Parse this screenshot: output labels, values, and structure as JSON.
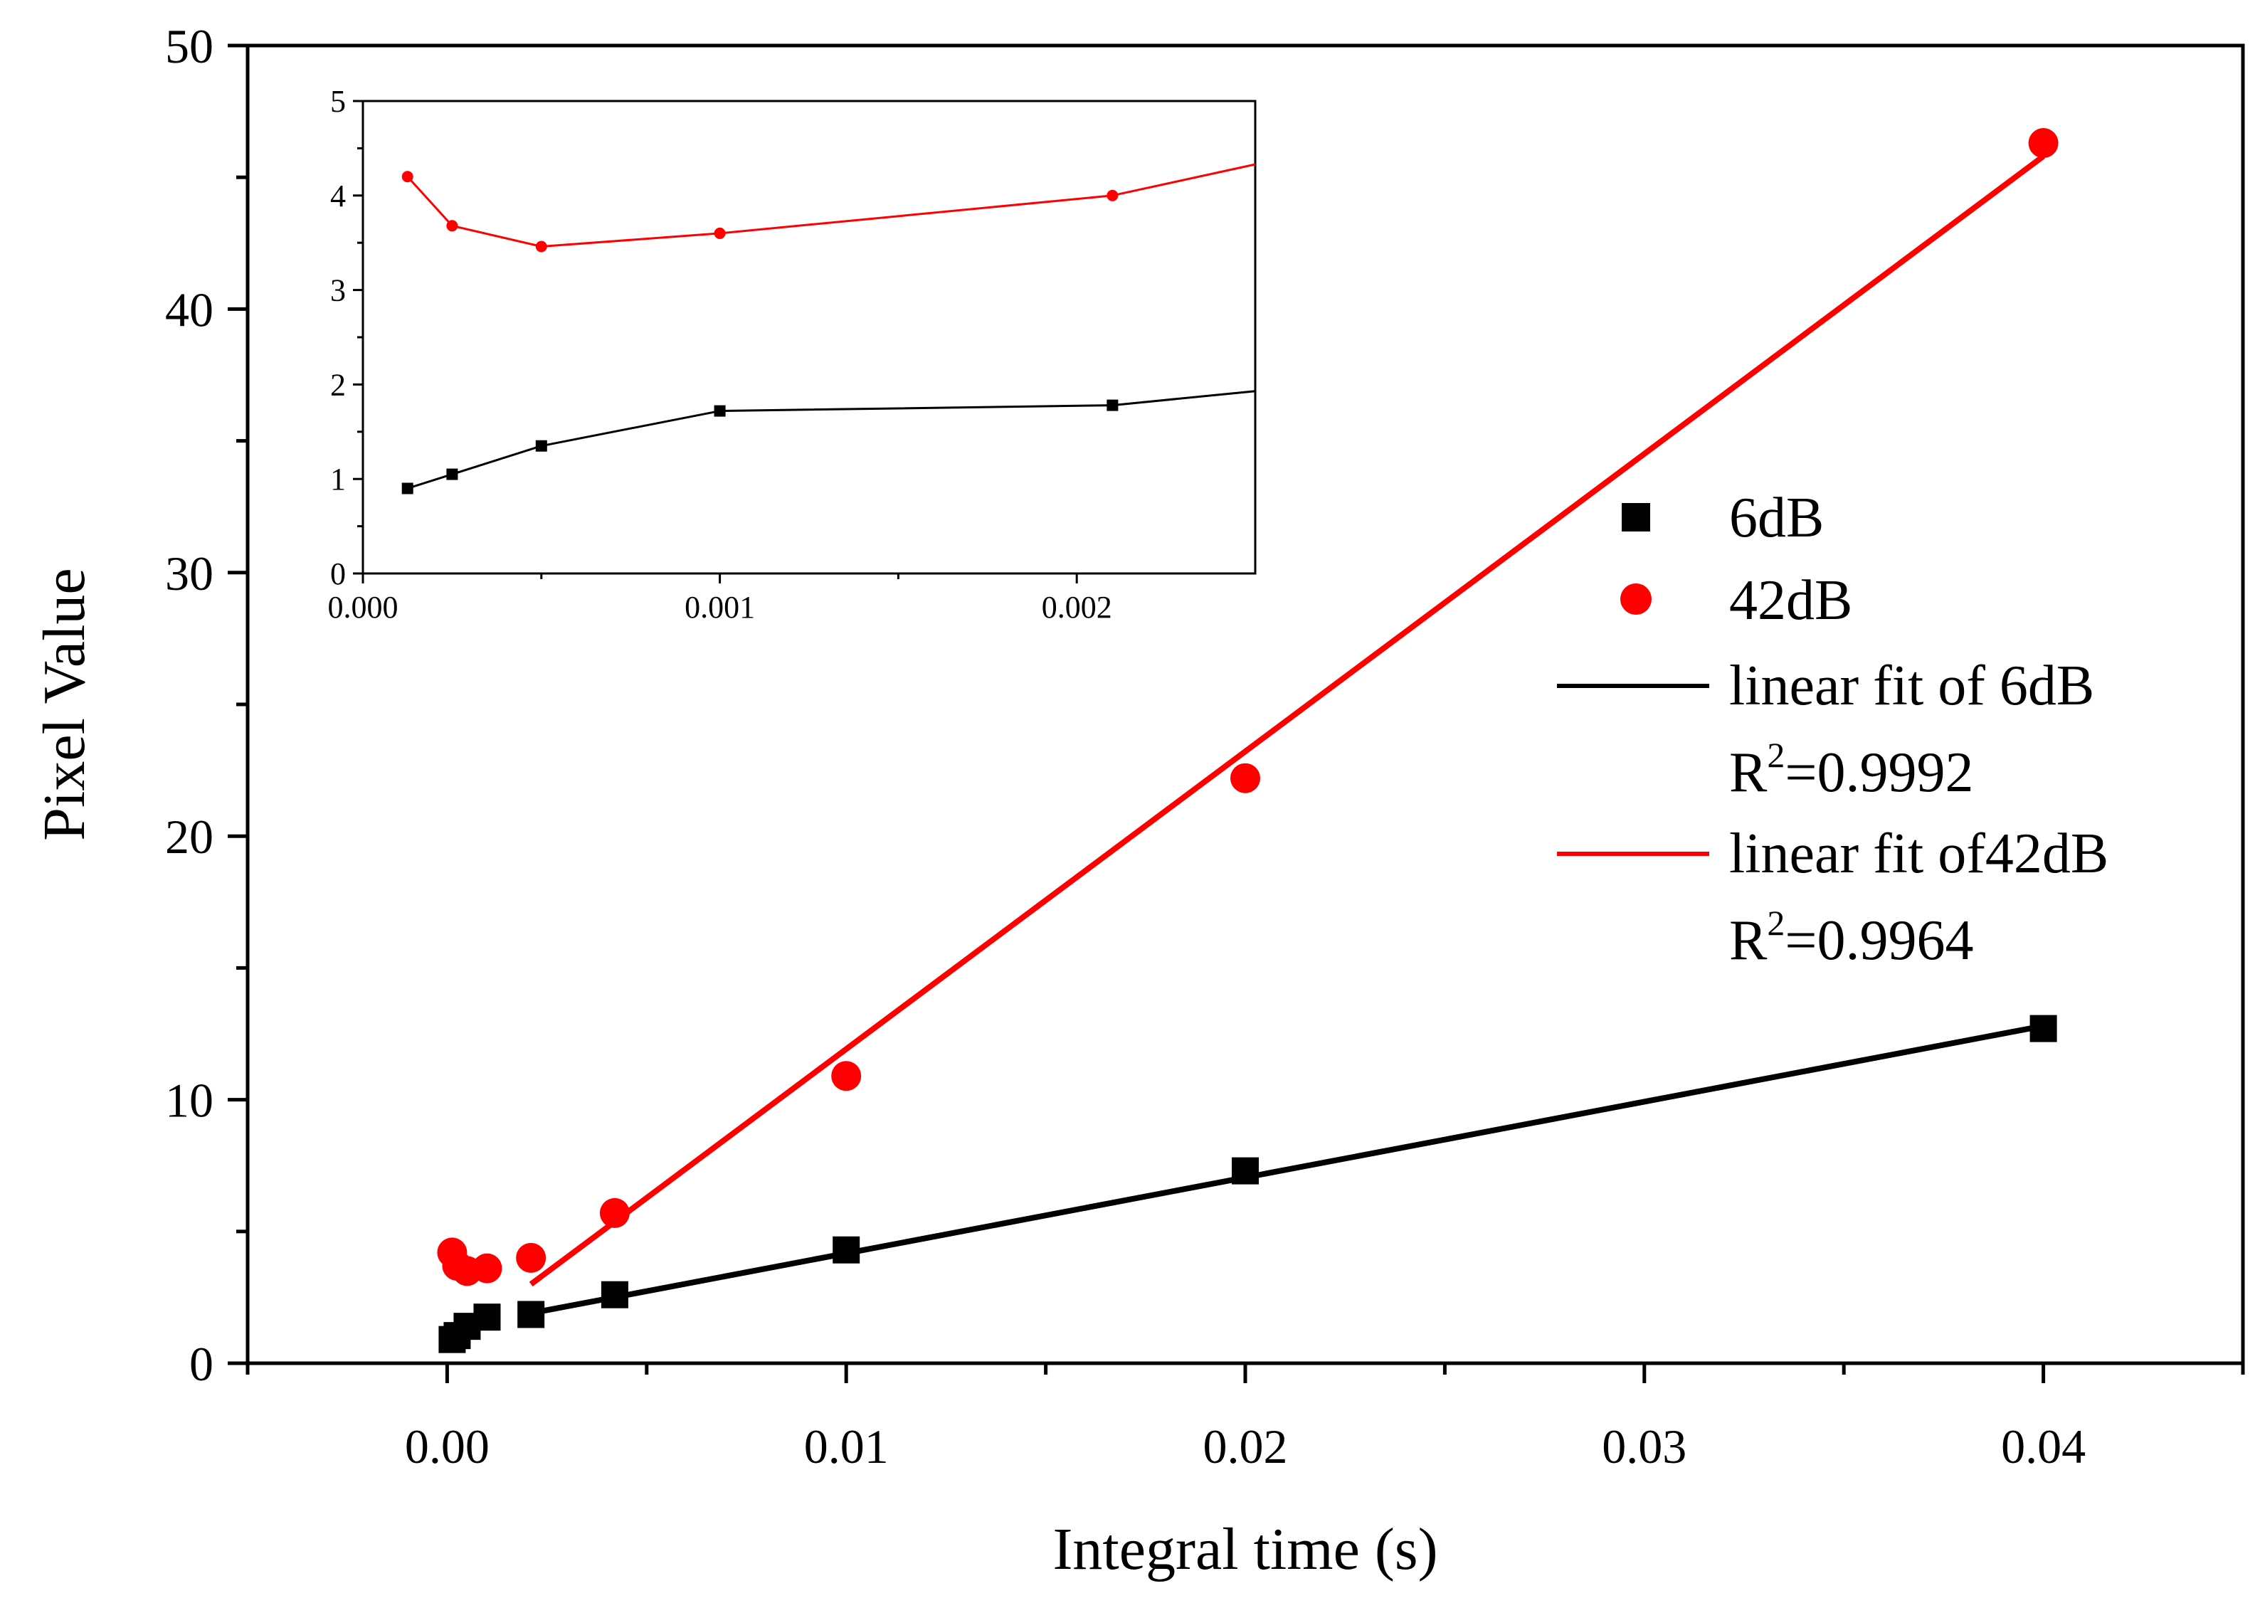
{
  "chart_data": {
    "type": "scatter",
    "main": {
      "xlabel": "Integral time (s)",
      "ylabel": "Pixel Value",
      "xlim": [
        -0.005,
        0.045
      ],
      "ylim": [
        0,
        50
      ],
      "xticks": [
        0.0,
        0.01,
        0.02,
        0.03,
        0.04
      ],
      "xtick_labels": [
        "0.00",
        "0.01",
        "0.02",
        "0.03",
        "0.04"
      ],
      "yticks": [
        0,
        10,
        20,
        30,
        40,
        50
      ],
      "ytick_labels": [
        "0",
        "10",
        "20",
        "30",
        "40",
        "50"
      ],
      "series": [
        {
          "name": "6dB",
          "marker": "square",
          "color": "#000000",
          "x": [
            0.000125,
            0.00025,
            0.0005,
            0.001,
            0.0021,
            0.0042,
            0.01,
            0.02,
            0.04
          ],
          "y": [
            0.9,
            1.05,
            1.4,
            1.75,
            1.85,
            2.6,
            4.3,
            7.3,
            12.7
          ]
        },
        {
          "name": "42dB",
          "marker": "circle",
          "color": "#ff0000",
          "x": [
            0.000125,
            0.00025,
            0.0005,
            0.001,
            0.0021,
            0.0042,
            0.01,
            0.02,
            0.04
          ],
          "y": [
            4.2,
            3.7,
            3.5,
            3.6,
            4.0,
            5.7,
            10.9,
            22.2,
            46.3
          ]
        }
      ],
      "fits": [
        {
          "name": "linear fit of 6dB",
          "color": "#000000",
          "x": [
            0.0021,
            0.04
          ],
          "y": [
            1.9,
            12.8
          ],
          "r2_prefix": "R",
          "r2_exp": "2",
          "r2_value": "=0.9992"
        },
        {
          "name": "linear fit of42dB",
          "color": "#ff0000",
          "x": [
            0.0021,
            0.04
          ],
          "y": [
            3.0,
            45.8
          ],
          "r2_prefix": "R",
          "r2_exp": "2",
          "r2_value": "=0.9964"
        }
      ],
      "legend_position": "center-right"
    },
    "inset": {
      "xlim": [
        0.0,
        0.0025
      ],
      "ylim": [
        0,
        5
      ],
      "xticks": [
        0.0,
        0.001,
        0.002
      ],
      "xtick_labels": [
        "0.000",
        "0.001",
        "0.002"
      ],
      "yticks": [
        0,
        1,
        2,
        3,
        4,
        5
      ],
      "ytick_labels": [
        "0",
        "1",
        "2",
        "3",
        "4",
        "5"
      ],
      "series": [
        {
          "name": "6dB",
          "color": "#000000",
          "x": [
            0.000125,
            0.00025,
            0.0005,
            0.001,
            0.0021,
            0.0025
          ],
          "y": [
            0.9,
            1.05,
            1.35,
            1.72,
            1.78,
            1.93
          ]
        },
        {
          "name": "42dB",
          "color": "#ff0000",
          "x": [
            0.000125,
            0.00025,
            0.0005,
            0.001,
            0.0021,
            0.0025
          ],
          "y": [
            4.2,
            3.68,
            3.46,
            3.6,
            4.0,
            4.33
          ]
        }
      ]
    }
  }
}
